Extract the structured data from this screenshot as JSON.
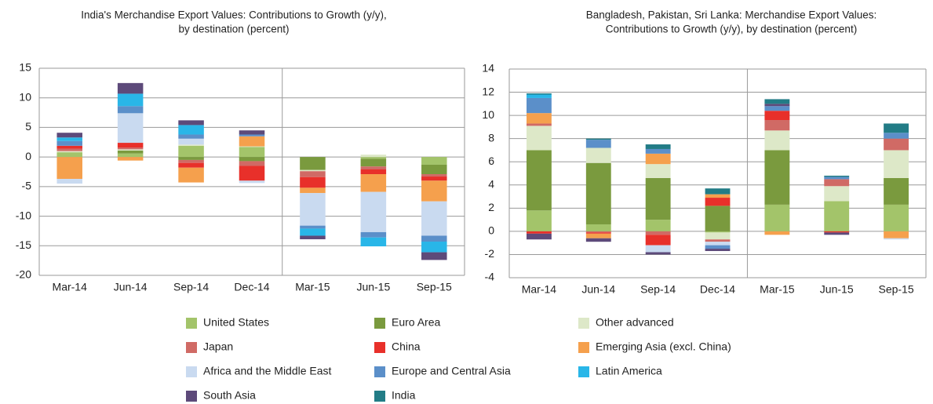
{
  "chart_data": [
    {
      "type": "stacked_bar",
      "title": [
        "India's Merchandise Export Values: Contributions to Growth (y/y),",
        "by destination (percent)"
      ],
      "categories": [
        "Mar-14",
        "Jun-14",
        "Sep-14",
        "Dec-14",
        "Mar-15",
        "Jun-15",
        "Sep-15"
      ],
      "ylim": [
        -20,
        15
      ],
      "yticks": [
        -20,
        -15,
        -10,
        -5,
        0,
        5,
        10,
        15
      ],
      "grid": true,
      "series": [
        {
          "name": "United States",
          "color": "#a3c46a",
          "values": [
            0.8,
            0.6,
            1.9,
            1.7,
            0,
            -0.3,
            -1.3
          ]
        },
        {
          "name": "Euro Area",
          "color": "#7a9a3e",
          "values": [
            0,
            0.5,
            -0.5,
            -0.7,
            -2.2,
            -1.3,
            -1.6
          ]
        },
        {
          "name": "Other advanced",
          "color": "#dde8c8",
          "values": [
            0.2,
            0.2,
            0.2,
            0.1,
            -0.2,
            0.4,
            0
          ]
        },
        {
          "name": "Japan",
          "color": "#d06a65",
          "values": [
            0.4,
            0.3,
            -0.5,
            -0.8,
            -1.0,
            -0.5,
            -0.4
          ]
        },
        {
          "name": "China",
          "color": "#e8302a",
          "values": [
            0.5,
            0.8,
            -0.8,
            -2.5,
            -1.8,
            -0.8,
            -0.7
          ]
        },
        {
          "name": "Emerging Asia (excl. China)",
          "color": "#f5a04d",
          "values": [
            -3.7,
            -0.6,
            -2.5,
            1.7,
            -0.9,
            -3.0,
            -3.5
          ]
        },
        {
          "name": "Africa and the Middle East",
          "color": "#c9daf0",
          "values": [
            -0.8,
            5.0,
            1.0,
            -0.4,
            -5.5,
            -6.8,
            -5.8
          ]
        },
        {
          "name": "Europe and Central Asia",
          "color": "#5b8fc9",
          "values": [
            0.8,
            1.2,
            0.7,
            0.3,
            -0.5,
            -0.9,
            -1.0
          ]
        },
        {
          "name": "Latin America",
          "color": "#29b6e8",
          "values": [
            0.6,
            2.1,
            1.6,
            0,
            -1.2,
            -1.5,
            -1.8
          ]
        },
        {
          "name": "South Asia",
          "color": "#5d4a7a",
          "values": [
            0.8,
            1.8,
            0.8,
            0.7,
            -0.6,
            0,
            -1.3
          ]
        }
      ]
    },
    {
      "type": "stacked_bar",
      "title": [
        "Bangladesh, Pakistan, Sri Lanka: Merchandise Export Values:",
        "Contributions to Growth (y/y), by destination (percent)"
      ],
      "categories": [
        "Mar-14",
        "Jun-14",
        "Sep-14",
        "Dec-14",
        "Mar-15",
        "Jun-15",
        "Sep-15"
      ],
      "ylim": [
        -4,
        14
      ],
      "yticks": [
        -4,
        -2,
        0,
        2,
        4,
        6,
        8,
        10,
        12,
        14
      ],
      "grid": true,
      "series": [
        {
          "name": "United States",
          "color": "#a3c46a",
          "values": [
            1.8,
            0.6,
            1.0,
            -0.1,
            2.3,
            2.6,
            2.3
          ]
        },
        {
          "name": "Euro Area",
          "color": "#7a9a3e",
          "values": [
            5.2,
            5.3,
            3.6,
            2.2,
            4.7,
            0,
            2.3
          ]
        },
        {
          "name": "Other advanced",
          "color": "#dde8c8",
          "values": [
            2.1,
            1.3,
            1.2,
            -0.6,
            1.7,
            1.3,
            2.4
          ]
        },
        {
          "name": "Japan",
          "color": "#d06a65",
          "values": [
            0.2,
            -0.1,
            -0.3,
            -0.2,
            0.9,
            0.6,
            1.0
          ]
        },
        {
          "name": "China",
          "color": "#e8302a",
          "values": [
            -0.2,
            -0.1,
            -0.9,
            0.7,
            0.8,
            -0.1,
            0
          ]
        },
        {
          "name": "Emerging Asia (excl. China)",
          "color": "#f5a04d",
          "values": [
            0.9,
            -0.4,
            0.9,
            0.3,
            -0.3,
            0,
            -0.6
          ]
        },
        {
          "name": "Africa and the Middle East",
          "color": "#c9daf0",
          "values": [
            0,
            0,
            -0.6,
            -0.3,
            0,
            0,
            -0.1
          ]
        },
        {
          "name": "Europe and Central Asia",
          "color": "#5b8fc9",
          "values": [
            1.3,
            0.7,
            0.4,
            -0.3,
            0.4,
            0.2,
            0.5
          ]
        },
        {
          "name": "Latin America",
          "color": "#29b6e8",
          "values": [
            0.3,
            0,
            0,
            0,
            0,
            0,
            0
          ]
        },
        {
          "name": "South Asia",
          "color": "#5d4a7a",
          "values": [
            -0.5,
            -0.3,
            -0.2,
            -0.2,
            0.2,
            -0.2,
            0
          ]
        },
        {
          "name": "India",
          "color": "#227c86",
          "values": [
            0.1,
            0.1,
            0.4,
            0.5,
            0.4,
            0.1,
            0.8
          ]
        }
      ]
    }
  ]
}
